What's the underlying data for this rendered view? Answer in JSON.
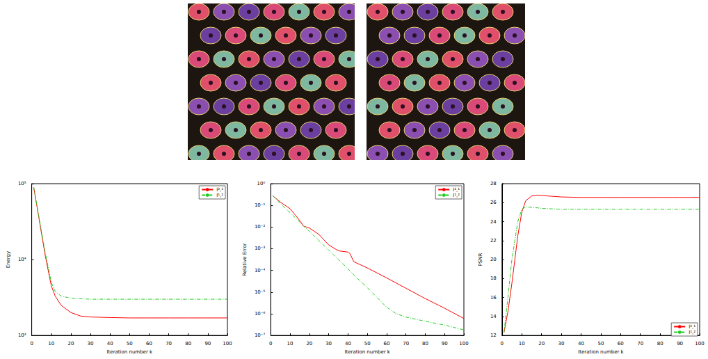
{
  "chart_data": [
    {
      "type": "line",
      "log": "y",
      "grid": false,
      "legend": "upper right",
      "xlabel": "Iteration number k",
      "ylabel": "Energy",
      "xlim": [
        0,
        100
      ],
      "xticks": [
        0,
        10,
        20,
        30,
        40,
        50,
        60,
        70,
        80,
        90,
        100
      ],
      "ylim": [
        1000,
        100000
      ],
      "yticks": [
        {
          "value": 1000,
          "label": "10³"
        },
        {
          "value": 10000,
          "label": "10⁴"
        },
        {
          "value": 100000,
          "label": "10⁵"
        }
      ],
      "x": [
        1,
        3,
        5,
        7,
        10,
        12,
        15,
        20,
        25,
        30,
        40,
        50,
        60,
        70,
        80,
        90,
        100
      ],
      "series": [
        {
          "name": "l²,¹",
          "color": "#ff0000",
          "line_style": "solid",
          "values": [
            90000,
            45000,
            22000,
            11000,
            4500,
            3300,
            2500,
            2000,
            1800,
            1750,
            1720,
            1700,
            1700,
            1700,
            1700,
            1700,
            1700
          ]
        },
        {
          "name": "l¹,²",
          "color": "#22cc22",
          "line_style": "dashed",
          "values": [
            90000,
            46000,
            23000,
            12000,
            5000,
            3800,
            3300,
            3100,
            3050,
            3000,
            3000,
            3000,
            3000,
            3000,
            3000,
            3000,
            3000
          ]
        }
      ]
    },
    {
      "type": "line",
      "log": "y",
      "grid": false,
      "legend": "upper right",
      "xlabel": "Iteration number k",
      "ylabel": "Relative Error",
      "xlim": [
        0,
        100
      ],
      "xticks": [
        0,
        10,
        20,
        30,
        40,
        50,
        60,
        70,
        80,
        90,
        100
      ],
      "ylim": [
        1e-07,
        1
      ],
      "yticks": [
        {
          "value": 1e-07,
          "label": "10⁻⁷"
        },
        {
          "value": 1e-06,
          "label": "10⁻⁶"
        },
        {
          "value": 1e-05,
          "label": "10⁻⁵"
        },
        {
          "value": 0.0001,
          "label": "10⁻⁴"
        },
        {
          "value": 0.001,
          "label": "10⁻³"
        },
        {
          "value": 0.01,
          "label": "10⁻²"
        },
        {
          "value": 0.1,
          "label": "10⁻¹"
        },
        {
          "value": 1,
          "label": "10⁰"
        }
      ],
      "x": [
        1,
        5,
        10,
        15,
        17,
        20,
        25,
        30,
        35,
        40,
        41,
        43,
        50,
        60,
        65,
        70,
        80,
        90,
        100
      ],
      "series": [
        {
          "name": "l²,¹",
          "color": "#ff0000",
          "line_style": "solid",
          "values": [
            0.28,
            0.14,
            0.07,
            0.02,
            0.011,
            0.009,
            0.0045,
            0.0015,
            0.0008,
            0.0007,
            0.0006,
            0.00025,
            0.00013,
            4.5e-05,
            2.6e-05,
            1.5e-05,
            5e-06,
            1.8e-06,
            6e-07
          ]
        },
        {
          "name": "l¹,²",
          "color": "#22cc22",
          "line_style": "dashed",
          "values": [
            0.28,
            0.12,
            0.046,
            0.017,
            0.011,
            0.0063,
            0.0023,
            0.00086,
            0.00032,
            0.00012,
            9.5e-05,
            6.2e-05,
            1.6e-05,
            2e-06,
            1e-06,
            7e-07,
            4.5e-07,
            3e-07,
            1.8e-07
          ]
        }
      ]
    },
    {
      "type": "line",
      "grid": false,
      "legend": "lower right",
      "xlabel": "Iteration number k",
      "ylabel": "PSNR",
      "xlim": [
        0,
        100
      ],
      "xticks": [
        0,
        10,
        20,
        30,
        40,
        50,
        60,
        70,
        80,
        90,
        100
      ],
      "ylim": [
        12,
        28
      ],
      "yticks": [
        12,
        14,
        16,
        18,
        20,
        22,
        24,
        26,
        28
      ],
      "x": [
        1,
        3,
        5,
        8,
        10,
        12,
        15,
        18,
        20,
        30,
        40,
        50,
        60,
        70,
        80,
        90,
        100
      ],
      "series": [
        {
          "name": "l²,¹",
          "color": "#ff0000",
          "line_style": "solid",
          "values": [
            12.3,
            14.5,
            17.5,
            22.5,
            25,
            26.2,
            26.7,
            26.8,
            26.75,
            26.6,
            26.55,
            26.55,
            26.55,
            26.55,
            26.55,
            26.55,
            26.55
          ]
        },
        {
          "name": "l¹,²",
          "color": "#22cc22",
          "line_style": "dashed",
          "values": [
            12.3,
            16,
            20,
            24,
            25.3,
            25.55,
            25.5,
            25.45,
            25.4,
            25.3,
            25.3,
            25.3,
            25.3,
            25.3,
            25.3,
            25.3,
            25.3
          ]
        }
      ]
    }
  ]
}
